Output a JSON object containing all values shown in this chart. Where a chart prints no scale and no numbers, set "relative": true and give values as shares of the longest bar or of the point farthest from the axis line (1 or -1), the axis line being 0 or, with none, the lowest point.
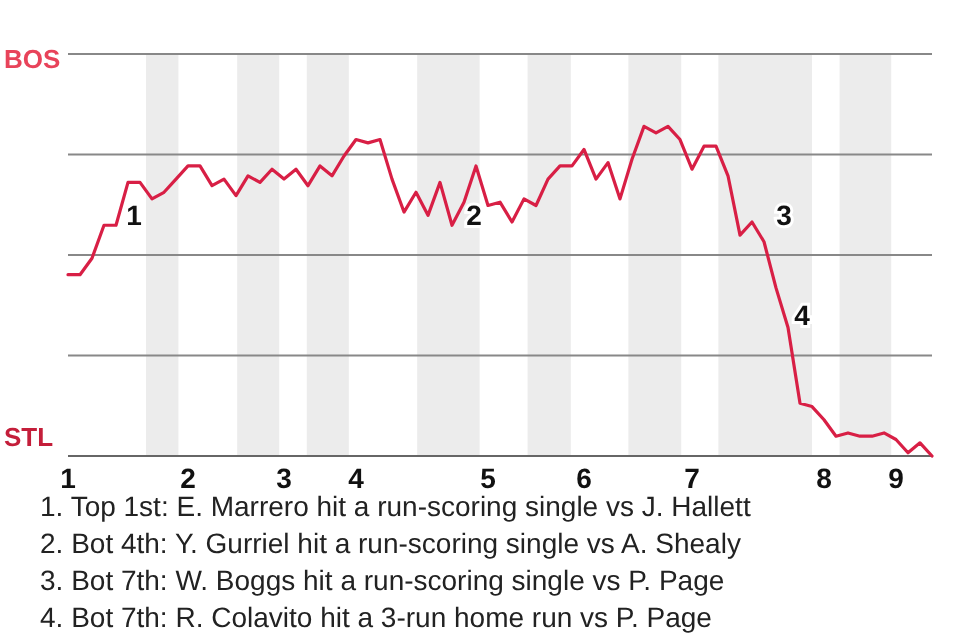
{
  "chart_data": {
    "type": "line",
    "relative": true,
    "grid": "y",
    "marker": "none",
    "line_style": "solid",
    "categories": [
      "1",
      null,
      null,
      null,
      null,
      null,
      null,
      null,
      null,
      null,
      "2",
      null,
      null,
      null,
      null,
      null,
      null,
      null,
      "3",
      null,
      null,
      null,
      null,
      null,
      "4",
      null,
      null,
      null,
      null,
      null,
      null,
      null,
      null,
      null,
      null,
      "5",
      null,
      null,
      null,
      null,
      null,
      null,
      null,
      "6",
      null,
      null,
      null,
      null,
      null,
      null,
      null,
      null,
      "7",
      null,
      null,
      null,
      null,
      null,
      null,
      null,
      null,
      null,
      null,
      "8",
      null,
      null,
      null,
      null,
      null,
      "9",
      null,
      null,
      null
    ],
    "series": [
      {
        "color": "#d81f45",
        "values": [
          0.55,
          0.55,
          0.6,
          0.7,
          0.7,
          0.83,
          0.83,
          0.78,
          0.8,
          0.84,
          0.88,
          0.88,
          0.82,
          0.84,
          0.79,
          0.85,
          0.83,
          0.87,
          0.84,
          0.87,
          0.82,
          0.88,
          0.85,
          0.91,
          0.96,
          0.95,
          0.96,
          0.84,
          0.74,
          0.8,
          0.73,
          0.83,
          0.7,
          0.77,
          0.88,
          0.76,
          0.77,
          0.71,
          0.78,
          0.76,
          0.84,
          0.88,
          0.88,
          0.93,
          0.84,
          0.89,
          0.78,
          0.9,
          1,
          0.98,
          1,
          0.96,
          0.87,
          0.94,
          0.94,
          0.85,
          0.67,
          0.71,
          0.65,
          0.51,
          0.39,
          0.16,
          0.15,
          0.11,
          0.06,
          0.07,
          0.06,
          0.06,
          0.07,
          0.05,
          0.01,
          0.04,
          0
        ]
      }
    ],
    "annotations": [
      "BOS",
      "STL",
      "1",
      "2",
      "3",
      "4",
      "1. Top 1st: E. Marrero hit a run-scoring single vs J. Hallett",
      "2. Bot 4th: Y. Gurriel hit a run-scoring single vs A. Shealy",
      "3. Bot 7th: W. Boggs hit a run-scoring single vs P. Page",
      "4. Bot 7th: R. Colavito hit a 3-run home run vs P. Page"
    ]
  }
}
